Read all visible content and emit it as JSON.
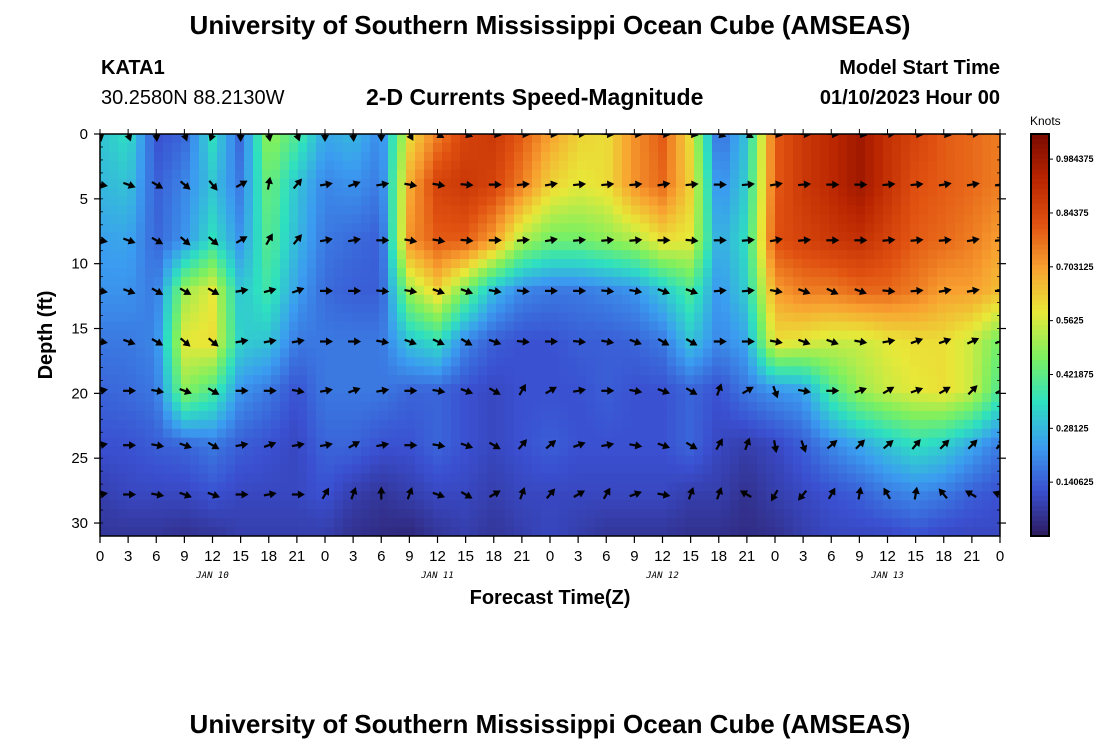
{
  "header": {
    "title": "University of Southern Mississippi Ocean Cube (AMSEAS)",
    "station": "KATA1",
    "coords": "30.2580N  88.2130W",
    "subtitle": "2-D Currents Speed-Magnitude",
    "model_start_label": "Model Start Time",
    "model_start_value": "01/10/2023 Hour 00"
  },
  "footer": {
    "title": "University of Southern Mississippi Ocean Cube (AMSEAS)"
  },
  "colorbar": {
    "unit": "Knots",
    "ticks": [
      "0.984375",
      "0.84375",
      "0.703125",
      "0.5625",
      "0.421875",
      "0.28125",
      "0.140625"
    ],
    "tick_values": [
      0.984375,
      0.84375,
      0.703125,
      0.5625,
      0.421875,
      0.28125,
      0.140625
    ],
    "range": [
      0,
      1.05
    ],
    "colors": [
      "#2c1a5c",
      "#3a4fd0",
      "#3b9cf0",
      "#2ee0c0",
      "#7cf060",
      "#e8e838",
      "#f8a030",
      "#e05010",
      "#b82400",
      "#7a0a00"
    ]
  },
  "chart_data": {
    "type": "heatmap",
    "title": "2-D Currents Speed-Magnitude",
    "xlabel": "Forecast Time(Z)",
    "ylabel": "Depth (ft)",
    "x_hours": [
      0,
      3,
      6,
      9,
      12,
      15,
      18,
      21,
      24,
      27,
      30,
      33,
      36,
      39,
      42,
      45,
      48,
      51,
      54,
      57,
      60,
      63,
      66,
      69,
      72,
      75,
      78,
      81,
      84,
      87,
      90,
      93,
      96
    ],
    "x_tick_labels": [
      "0",
      "3",
      "6",
      "9",
      "12",
      "15",
      "18",
      "21",
      "0",
      "3",
      "6",
      "9",
      "12",
      "15",
      "18",
      "21",
      "0",
      "3",
      "6",
      "9",
      "12",
      "15",
      "18",
      "21",
      "0",
      "3",
      "6",
      "9",
      "12",
      "15",
      "18",
      "21",
      "0"
    ],
    "day_labels": [
      "JAN 10",
      "JAN 11",
      "JAN 12",
      "JAN 13"
    ],
    "day_label_hours": [
      12,
      36,
      60,
      84
    ],
    "y_ticks": [
      0,
      5,
      10,
      15,
      20,
      25,
      30
    ],
    "ylim": [
      31,
      0
    ],
    "depths_ft": [
      0,
      3.9,
      8.2,
      12.1,
      16,
      19.8,
      24,
      27.8,
      31
    ],
    "speed_knots": [
      [
        0.3,
        0.35,
        0.12,
        0.15,
        0.35,
        0.15,
        0.5,
        0.4,
        0.25,
        0.28,
        0.2,
        0.6,
        0.75,
        0.85,
        0.88,
        0.8,
        0.7,
        0.62,
        0.6,
        0.72,
        0.8,
        0.6,
        0.15,
        0.3,
        0.8,
        0.88,
        0.92,
        0.98,
        0.9,
        0.85,
        0.8,
        0.78,
        0.75
      ],
      [
        0.28,
        0.3,
        0.14,
        0.2,
        0.3,
        0.18,
        0.45,
        0.3,
        0.2,
        0.22,
        0.18,
        0.68,
        0.85,
        0.88,
        0.85,
        0.75,
        0.62,
        0.58,
        0.6,
        0.72,
        0.78,
        0.62,
        0.2,
        0.32,
        0.8,
        0.88,
        0.92,
        0.98,
        0.9,
        0.82,
        0.8,
        0.78,
        0.75
      ],
      [
        0.24,
        0.25,
        0.15,
        0.22,
        0.35,
        0.22,
        0.42,
        0.28,
        0.18,
        0.16,
        0.14,
        0.72,
        0.8,
        0.8,
        0.7,
        0.52,
        0.45,
        0.45,
        0.48,
        0.52,
        0.6,
        0.58,
        0.25,
        0.35,
        0.82,
        0.85,
        0.88,
        0.9,
        0.85,
        0.8,
        0.78,
        0.75,
        0.7
      ],
      [
        0.22,
        0.22,
        0.18,
        0.5,
        0.58,
        0.3,
        0.38,
        0.24,
        0.16,
        0.14,
        0.14,
        0.5,
        0.62,
        0.45,
        0.28,
        0.2,
        0.18,
        0.18,
        0.2,
        0.22,
        0.3,
        0.4,
        0.22,
        0.32,
        0.7,
        0.75,
        0.75,
        0.78,
        0.78,
        0.75,
        0.7,
        0.7,
        0.65
      ],
      [
        0.18,
        0.18,
        0.2,
        0.58,
        0.6,
        0.32,
        0.3,
        0.18,
        0.18,
        0.18,
        0.18,
        0.3,
        0.35,
        0.2,
        0.14,
        0.12,
        0.12,
        0.14,
        0.14,
        0.15,
        0.18,
        0.3,
        0.2,
        0.25,
        0.6,
        0.58,
        0.55,
        0.55,
        0.58,
        0.6,
        0.6,
        0.55,
        0.45
      ],
      [
        0.15,
        0.16,
        0.18,
        0.48,
        0.4,
        0.22,
        0.18,
        0.12,
        0.18,
        0.18,
        0.18,
        0.15,
        0.15,
        0.12,
        0.1,
        0.12,
        0.12,
        0.12,
        0.14,
        0.12,
        0.12,
        0.15,
        0.12,
        0.18,
        0.22,
        0.24,
        0.4,
        0.5,
        0.55,
        0.58,
        0.6,
        0.55,
        0.4
      ],
      [
        0.12,
        0.12,
        0.14,
        0.15,
        0.18,
        0.14,
        0.12,
        0.1,
        0.15,
        0.15,
        0.12,
        0.12,
        0.15,
        0.12,
        0.1,
        0.12,
        0.14,
        0.12,
        0.12,
        0.12,
        0.12,
        0.15,
        0.1,
        0.08,
        0.1,
        0.14,
        0.2,
        0.25,
        0.3,
        0.35,
        0.32,
        0.25,
        0.18
      ],
      [
        0.08,
        0.1,
        0.1,
        0.1,
        0.12,
        0.1,
        0.1,
        0.1,
        0.12,
        0.08,
        0.06,
        0.08,
        0.1,
        0.1,
        0.08,
        0.1,
        0.1,
        0.1,
        0.1,
        0.1,
        0.1,
        0.08,
        0.08,
        0.05,
        0.08,
        0.1,
        0.12,
        0.14,
        0.18,
        0.2,
        0.18,
        0.14,
        0.12
      ],
      [
        0.06,
        0.06,
        0.06,
        0.05,
        0.06,
        0.08,
        0.08,
        0.08,
        0.08,
        0.05,
        0.04,
        0.03,
        0.06,
        0.08,
        0.06,
        0.08,
        0.1,
        0.08,
        0.06,
        0.06,
        0.06,
        0.05,
        0.05,
        0.04,
        0.05,
        0.08,
        0.1,
        0.1,
        0.1,
        0.12,
        0.1,
        0.1,
        0.1
      ]
    ],
    "arrow_depths_ft": [
      0,
      3.9,
      8.2,
      12.1,
      16,
      19.8,
      24,
      27.8
    ],
    "arrow_direction_deg": [
      [
        170,
        160,
        175,
        160,
        200,
        180,
        170,
        160,
        180,
        175,
        180,
        150,
        120,
        110,
        100,
        95,
        95,
        90,
        95,
        95,
        95,
        100,
        110,
        120,
        100,
        95,
        95,
        100,
        90,
        95,
        100,
        90,
        95
      ],
      [
        100,
        110,
        120,
        130,
        140,
        60,
        10,
        40,
        80,
        70,
        80,
        100,
        100,
        95,
        90,
        85,
        80,
        85,
        85,
        85,
        80,
        85,
        90,
        85,
        80,
        85,
        90,
        90,
        85,
        85,
        80,
        80,
        80
      ],
      [
        100,
        110,
        120,
        130,
        130,
        60,
        30,
        40,
        80,
        80,
        90,
        100,
        100,
        95,
        90,
        85,
        80,
        85,
        85,
        85,
        90,
        95,
        90,
        85,
        80,
        85,
        90,
        90,
        85,
        85,
        85,
        80,
        85
      ],
      [
        100,
        110,
        120,
        120,
        120,
        80,
        75,
        70,
        90,
        90,
        95,
        100,
        110,
        110,
        100,
        95,
        90,
        90,
        95,
        100,
        110,
        110,
        85,
        85,
        100,
        110,
        115,
        110,
        95,
        85,
        80,
        80,
        90
      ],
      [
        100,
        110,
        120,
        130,
        130,
        80,
        80,
        80,
        90,
        90,
        100,
        110,
        115,
        120,
        110,
        95,
        90,
        95,
        100,
        110,
        120,
        120,
        90,
        90,
        100,
        110,
        110,
        100,
        80,
        70,
        70,
        65,
        70
      ],
      [
        80,
        90,
        100,
        110,
        120,
        90,
        90,
        100,
        80,
        70,
        80,
        90,
        100,
        110,
        120,
        30,
        60,
        80,
        90,
        100,
        110,
        120,
        20,
        60,
        160,
        100,
        90,
        70,
        60,
        70,
        60,
        45,
        60
      ],
      [
        80,
        90,
        100,
        110,
        120,
        80,
        70,
        80,
        80,
        60,
        80,
        90,
        100,
        110,
        120,
        40,
        50,
        70,
        80,
        100,
        110,
        120,
        30,
        20,
        170,
        160,
        50,
        45,
        50,
        40,
        45,
        45,
        45
      ],
      [
        80,
        90,
        100,
        110,
        110,
        90,
        80,
        90,
        30,
        20,
        0,
        20,
        110,
        120,
        60,
        20,
        40,
        60,
        30,
        70,
        100,
        20,
        20,
        300,
        210,
        220,
        30,
        10,
        330,
        10,
        320,
        300,
        290
      ]
    ]
  }
}
